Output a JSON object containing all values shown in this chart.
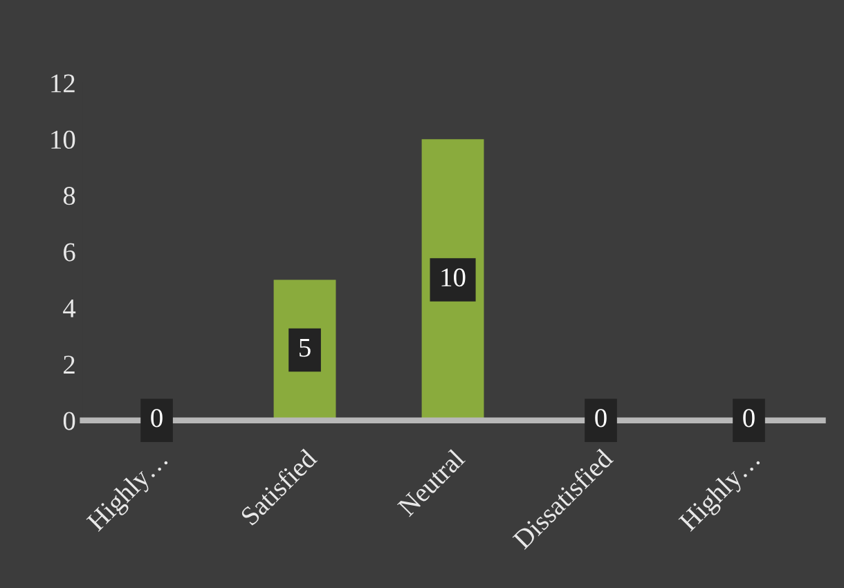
{
  "chart_data": {
    "type": "bar",
    "categories": [
      "Highly…",
      "Satisfied",
      "Neutral",
      "Dissatisfied",
      "Highly…"
    ],
    "values": [
      0,
      5,
      10,
      0,
      0
    ],
    "color": "#8aab3d",
    "ylim": [
      0,
      12
    ],
    "yticks": [
      0,
      2,
      4,
      6,
      8,
      10,
      12
    ],
    "grid": false,
    "data_labels": true
  }
}
